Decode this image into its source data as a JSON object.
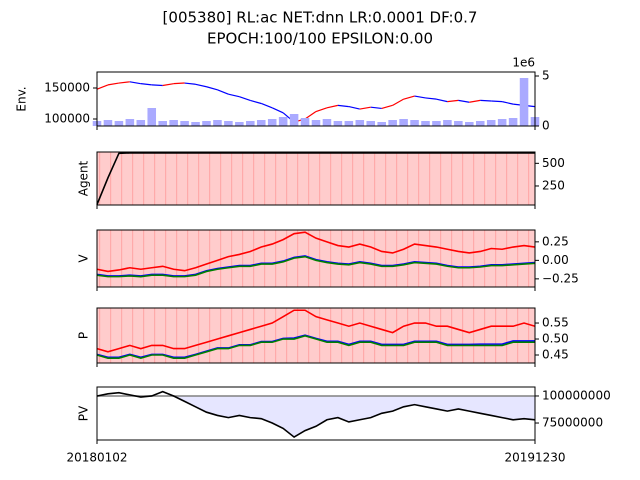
{
  "chart_data": [
    {
      "type": "line",
      "title": "[005380] RL:ac NET:dnn LR:0.0001 DF:0.7",
      "subtitle": "EPOCH:100/100 EPSILON:0.00",
      "ylabel": "Env.",
      "ytick_side": "left",
      "xlim": [
        0,
        40
      ],
      "x": [
        0,
        1,
        2,
        3,
        4,
        5,
        6,
        7,
        8,
        9,
        10,
        11,
        12,
        13,
        14,
        15,
        16,
        17,
        18,
        19,
        20,
        21,
        22,
        23,
        24,
        25,
        26,
        27,
        28,
        29,
        30,
        31,
        32,
        33,
        34,
        35,
        36,
        37,
        38,
        39,
        40
      ],
      "ylim": [
        88700,
        175800
      ],
      "yticks": [
        100000,
        150000
      ],
      "y2lim": [
        0,
        5.4
      ],
      "y2ticks": [
        0,
        5
      ],
      "y2_offset_label": "1e6",
      "series": [
        {
          "type": "line",
          "color_up": "red",
          "color_down": "blue",
          "values": [
            148000,
            155000,
            158000,
            160000,
            157000,
            155000,
            154000,
            157000,
            158000,
            156000,
            152000,
            147000,
            140000,
            136000,
            130000,
            125000,
            118000,
            110000,
            95000,
            100000,
            112000,
            118000,
            122000,
            120000,
            116000,
            119000,
            117000,
            122000,
            132000,
            137000,
            134000,
            132000,
            128000,
            130000,
            127000,
            130000,
            129000,
            128000,
            124000,
            122000,
            120000
          ]
        },
        {
          "type": "bar",
          "axis": "y2",
          "color": "#aaaaff",
          "values": [
            0.5,
            0.6,
            0.5,
            0.7,
            0.6,
            1.8,
            0.5,
            0.6,
            0.5,
            0.4,
            0.5,
            0.6,
            0.5,
            0.4,
            0.5,
            0.6,
            0.7,
            0.9,
            1.2,
            0.8,
            0.6,
            0.7,
            0.5,
            0.5,
            0.6,
            0.5,
            0.4,
            0.6,
            0.7,
            0.6,
            0.5,
            0.5,
            0.6,
            0.5,
            0.4,
            0.5,
            0.6,
            0.7,
            0.8,
            4.8,
            0.9
          ]
        }
      ]
    },
    {
      "type": "line",
      "ylabel": "Agent",
      "ytick_side": "right",
      "background": "#ffcccc",
      "xlim": [
        0,
        40
      ],
      "x": [
        0,
        1,
        2,
        3,
        4,
        5,
        6,
        7,
        8,
        9,
        10,
        11,
        12,
        13,
        14,
        15,
        16,
        17,
        18,
        19,
        20,
        21,
        22,
        23,
        24,
        25,
        26,
        27,
        28,
        29,
        30,
        31,
        32,
        33,
        34,
        35,
        36,
        37,
        38,
        39,
        40
      ],
      "ylim": [
        40,
        625
      ],
      "yticks": [
        250,
        500
      ],
      "series": [
        {
          "type": "line",
          "color": "black",
          "values": [
            45,
            340,
            610,
            615,
            615,
            615,
            615,
            615,
            615,
            615,
            615,
            615,
            615,
            615,
            615,
            615,
            615,
            615,
            615,
            615,
            615,
            615,
            615,
            615,
            615,
            615,
            615,
            615,
            615,
            615,
            615,
            615,
            615,
            615,
            615,
            615,
            615,
            615,
            615,
            615,
            615
          ]
        }
      ]
    },
    {
      "type": "line",
      "ylabel": "V",
      "ytick_side": "right",
      "background": "#ffcccc",
      "xlim": [
        0,
        40
      ],
      "x": [
        0,
        1,
        2,
        3,
        4,
        5,
        6,
        7,
        8,
        9,
        10,
        11,
        12,
        13,
        14,
        15,
        16,
        17,
        18,
        19,
        20,
        21,
        22,
        23,
        24,
        25,
        26,
        27,
        28,
        29,
        30,
        31,
        32,
        33,
        34,
        35,
        36,
        37,
        38,
        39,
        40
      ],
      "ylim": [
        -0.36,
        0.41
      ],
      "yticks": [
        {
          "value": -0.25,
          "label": "−0.25"
        },
        {
          "value": 0,
          "label": "0.00"
        },
        0.25
      ],
      "series": [
        {
          "type": "line",
          "color": "red",
          "values": [
            -0.12,
            -0.15,
            -0.13,
            -0.1,
            -0.12,
            -0.1,
            -0.08,
            -0.12,
            -0.14,
            -0.1,
            -0.05,
            0,
            0.05,
            0.08,
            0.12,
            0.18,
            0.22,
            0.28,
            0.36,
            0.38,
            0.3,
            0.25,
            0.2,
            0.18,
            0.22,
            0.18,
            0.12,
            0.1,
            0.15,
            0.22,
            0.2,
            0.18,
            0.15,
            0.12,
            0.1,
            0.12,
            0.16,
            0.15,
            0.18,
            0.2,
            0.18
          ]
        },
        {
          "type": "line",
          "color": "blue",
          "values": [
            -0.19,
            -0.21,
            -0.21,
            -0.2,
            -0.21,
            -0.19,
            -0.19,
            -0.21,
            -0.21,
            -0.19,
            -0.14,
            -0.11,
            -0.09,
            -0.07,
            -0.07,
            -0.04,
            -0.04,
            -0.01,
            0.04,
            0.06,
            0.01,
            -0.02,
            -0.04,
            -0.05,
            -0.02,
            -0.04,
            -0.07,
            -0.07,
            -0.05,
            -0.02,
            -0.03,
            -0.04,
            -0.07,
            -0.09,
            -0.09,
            -0.08,
            -0.06,
            -0.06,
            -0.05,
            -0.04,
            -0.03
          ]
        },
        {
          "type": "line",
          "color": "green",
          "values": [
            -0.2,
            -0.22,
            -0.22,
            -0.21,
            -0.22,
            -0.2,
            -0.2,
            -0.22,
            -0.22,
            -0.2,
            -0.15,
            -0.12,
            -0.1,
            -0.08,
            -0.08,
            -0.05,
            -0.05,
            -0.02,
            0.03,
            0.05,
            0,
            -0.03,
            -0.05,
            -0.06,
            -0.03,
            -0.05,
            -0.08,
            -0.08,
            -0.06,
            -0.03,
            -0.04,
            -0.05,
            -0.08,
            -0.1,
            -0.1,
            -0.09,
            -0.07,
            -0.07,
            -0.06,
            -0.05,
            -0.04
          ]
        }
      ]
    },
    {
      "type": "line",
      "ylabel": "P",
      "ytick_side": "right",
      "background": "#ffcccc",
      "xlim": [
        0,
        40
      ],
      "x": [
        0,
        1,
        2,
        3,
        4,
        5,
        6,
        7,
        8,
        9,
        10,
        11,
        12,
        13,
        14,
        15,
        16,
        17,
        18,
        19,
        20,
        21,
        22,
        23,
        24,
        25,
        26,
        27,
        28,
        29,
        30,
        31,
        32,
        33,
        34,
        35,
        36,
        37,
        38,
        39,
        40
      ],
      "ylim": [
        0.425,
        0.597
      ],
      "yticks": [
        0.45,
        {
          "value": 0.5,
          "label": "0.50"
        },
        0.55
      ],
      "series": [
        {
          "type": "line",
          "color": "red",
          "values": [
            0.47,
            0.46,
            0.47,
            0.48,
            0.47,
            0.48,
            0.48,
            0.47,
            0.47,
            0.48,
            0.49,
            0.5,
            0.51,
            0.52,
            0.53,
            0.54,
            0.55,
            0.57,
            0.59,
            0.59,
            0.57,
            0.56,
            0.55,
            0.54,
            0.55,
            0.54,
            0.53,
            0.52,
            0.54,
            0.55,
            0.55,
            0.54,
            0.54,
            0.53,
            0.52,
            0.53,
            0.54,
            0.54,
            0.54,
            0.55,
            0.54
          ]
        },
        {
          "type": "line",
          "color": "blue",
          "values": [
            0.452,
            0.443,
            0.443,
            0.452,
            0.443,
            0.452,
            0.452,
            0.443,
            0.443,
            0.452,
            0.462,
            0.472,
            0.472,
            0.482,
            0.482,
            0.492,
            0.492,
            0.502,
            0.503,
            0.512,
            0.502,
            0.493,
            0.493,
            0.483,
            0.493,
            0.493,
            0.483,
            0.483,
            0.483,
            0.493,
            0.493,
            0.493,
            0.483,
            0.483,
            0.483,
            0.484,
            0.484,
            0.484,
            0.494,
            0.494,
            0.494
          ]
        },
        {
          "type": "line",
          "color": "green",
          "values": [
            0.45,
            0.44,
            0.44,
            0.45,
            0.44,
            0.45,
            0.45,
            0.44,
            0.44,
            0.45,
            0.46,
            0.47,
            0.47,
            0.48,
            0.48,
            0.49,
            0.49,
            0.5,
            0.5,
            0.51,
            0.5,
            0.49,
            0.49,
            0.48,
            0.49,
            0.49,
            0.48,
            0.48,
            0.48,
            0.49,
            0.49,
            0.49,
            0.48,
            0.48,
            0.48,
            0.48,
            0.48,
            0.48,
            0.49,
            0.49,
            0.49
          ]
        }
      ]
    },
    {
      "type": "line",
      "ylabel": "PV",
      "ytick_side": "right",
      "xlim": [
        0,
        40
      ],
      "x": [
        0,
        1,
        2,
        3,
        4,
        5,
        6,
        7,
        8,
        9,
        10,
        11,
        12,
        13,
        14,
        15,
        16,
        17,
        18,
        19,
        20,
        21,
        22,
        23,
        24,
        25,
        26,
        27,
        28,
        29,
        30,
        31,
        32,
        33,
        34,
        35,
        36,
        37,
        38,
        39,
        40
      ],
      "xticks": [
        {
          "value": 0,
          "label": "20180102"
        },
        {
          "value": 40,
          "label": "20191230"
        }
      ],
      "ylim": [
        59300000,
        108300000
      ],
      "yticks": [
        75000000,
        100000000
      ],
      "reference_line": 100000000,
      "reference_color": "gray",
      "fill_below_reference": "#e6e6ff",
      "series": [
        {
          "type": "line",
          "color": "black",
          "values": [
            100000000,
            102000000,
            103000000,
            101000000,
            99000000,
            100000000,
            104000000,
            100000000,
            95000000,
            90000000,
            85000000,
            82000000,
            80000000,
            82000000,
            80000000,
            79000000,
            75000000,
            70000000,
            62000000,
            68000000,
            72000000,
            78000000,
            80000000,
            76000000,
            78000000,
            80000000,
            84000000,
            86000000,
            90000000,
            92000000,
            90000000,
            88000000,
            86000000,
            88000000,
            86000000,
            84000000,
            82000000,
            80000000,
            78000000,
            79000000,
            78000000
          ]
        }
      ]
    }
  ]
}
